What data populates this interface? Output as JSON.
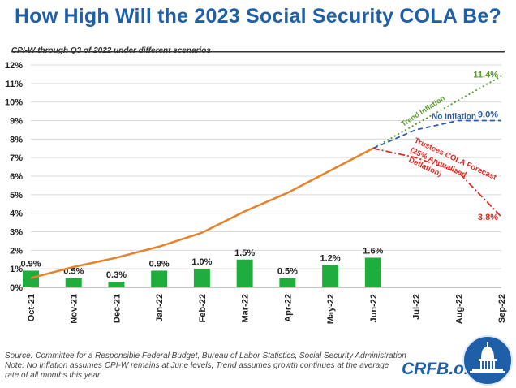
{
  "title": "How High Will the 2023 Social Security COLA Be?",
  "subtitle": "CPI-W through Q3 of 2022 under different scenarios",
  "colors": {
    "bars": "#1fae3d",
    "actual_line": "#e8822a",
    "trend": "#5a9a2b",
    "no_inflation": "#2b5ea8",
    "trustees": "#dd2a22",
    "title": "#1f5fa8"
  },
  "chart_data": {
    "type": "bar+line",
    "categories": [
      "Oct-21",
      "Nov-21",
      "Dec-21",
      "Jan-22",
      "Feb-22",
      "Mar-22",
      "Apr-22",
      "May-22",
      "Jun-22",
      "Jul-22",
      "Aug-22",
      "Sep-22"
    ],
    "ylim": [
      0,
      12
    ],
    "yticks": [
      "0%",
      "1%",
      "2%",
      "3%",
      "4%",
      "5%",
      "6%",
      "7%",
      "8%",
      "9%",
      "10%",
      "11%",
      "12%"
    ],
    "monthly_bars": {
      "values": [
        0.9,
        0.5,
        0.3,
        0.9,
        1.0,
        1.5,
        0.5,
        1.2,
        1.6
      ],
      "labels": [
        "0.9%",
        "0.5%",
        "0.3%",
        "0.9%",
        "1.0%",
        "1.5%",
        "0.5%",
        "1.2%",
        "1.6%"
      ]
    },
    "cumulative_line": {
      "values": [
        0.5,
        1.1,
        1.6,
        2.2,
        2.95,
        4.1,
        5.1,
        6.3,
        7.5
      ]
    },
    "scenarios": [
      {
        "key": "trend",
        "name": "Trend Inflation",
        "values": [
          7.5,
          8.8,
          10.1,
          11.4
        ],
        "end_label": "11.4%",
        "style": "dotted"
      },
      {
        "key": "no_inflation",
        "name": "No Inflation",
        "values": [
          7.5,
          8.5,
          9.0,
          9.0
        ],
        "end_label": "9.0%",
        "style": "dashed"
      },
      {
        "key": "trustees",
        "name": "Trustees COLA Forecast (25% Annualized Deflation)",
        "values": [
          7.5,
          7.0,
          6.2,
          3.8
        ],
        "end_label": "3.8%",
        "style": "dashdot"
      }
    ],
    "trustees_label_lines": [
      "Trustees COLA Forecast",
      "(25% Annualized",
      "Deflation)"
    ]
  },
  "footnotes": {
    "source": "Source: Committee for a Responsible Federal Budget, Bureau of Labor Statistics, Social Security Administration",
    "note": "Note: No Inflation assumes CPI-W remains at June levels, Trend assumes growth continues at the average rate of all months this year"
  },
  "brand": "CRFB.org",
  "logo_icon": "capitol-dome-icon"
}
